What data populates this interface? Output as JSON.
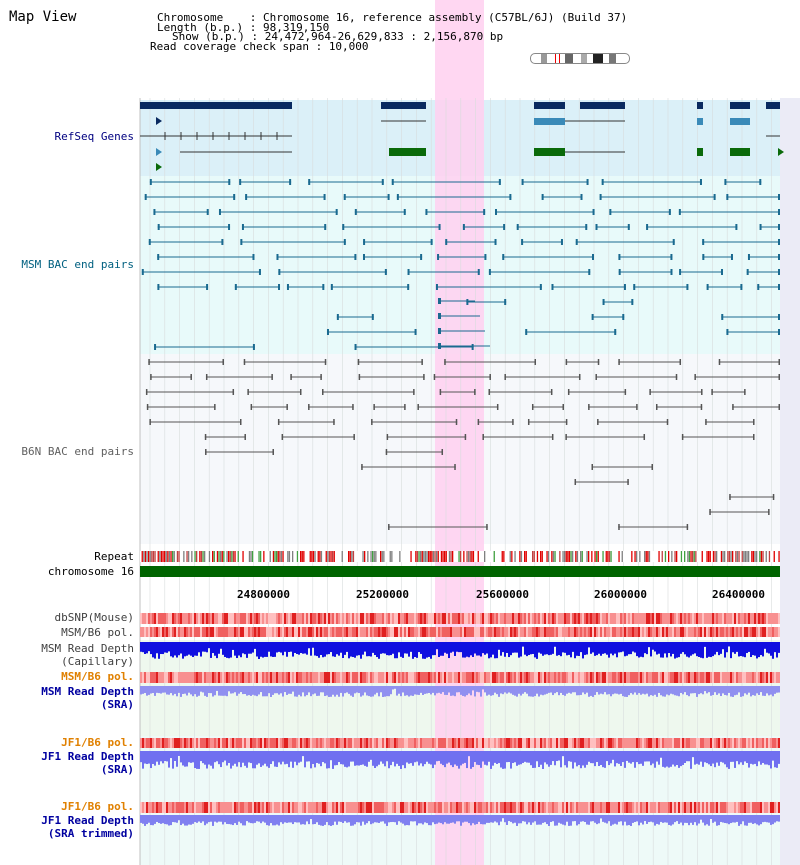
{
  "app": {
    "title": "Map View"
  },
  "header": {
    "chromosome_label": "Chromosome    : ",
    "chromosome_value": "Chromosome 16, reference assembly (C57BL/6J) (Build 37)",
    "length_label": "Length (b.p.) : ",
    "length_value": "98,319,150",
    "show_label": "Show (b.p.) : ",
    "show_value": "24,472,964-26,629,833 : 2,156,870 bp",
    "coverage_label": "Read coverage check span : ",
    "coverage_value": "10,000"
  },
  "tracks": {
    "refseq": "RefSeq Genes",
    "msm_bac": "MSM BAC end pairs",
    "b6n_bac": "B6N BAC end pairs",
    "repeat": "Repeat",
    "chromosome": "chromosome 16",
    "dbsnp": "dbSNP(Mouse)",
    "msm_b6_pol_1": "MSM/B6 pol.",
    "msm_read_depth_cap_1": "MSM Read Depth",
    "msm_read_depth_cap_2": "(Capillary)",
    "msm_b6_pol_2": "MSM/B6 pol.",
    "msm_read_depth_sra_1": "MSM Read Depth",
    "msm_read_depth_sra_2": "(SRA)",
    "jf1_b6_pol_1": "JF1/B6 pol.",
    "jf1_read_depth_sra_1": "JF1 Read Depth",
    "jf1_read_depth_sra_2": "(SRA)",
    "jf1_b6_pol_2": "JF1/B6 pol.",
    "jf1_read_depth_trim_1": "JF1 Read Depth",
    "jf1_read_depth_trim_2": "(SRA trimmed)"
  },
  "axis": {
    "ticks": [
      "24800000",
      "25200000",
      "25600000",
      "26000000",
      "26400000"
    ]
  },
  "colors": {
    "refseq_label": "#000080",
    "msm_label": "#006080",
    "b6n_label": "#606060",
    "orange_label": "#e08000",
    "blue_label": "#0000a0",
    "highlight": "#ffd0f0",
    "chromosome_bar": "#006400"
  }
}
